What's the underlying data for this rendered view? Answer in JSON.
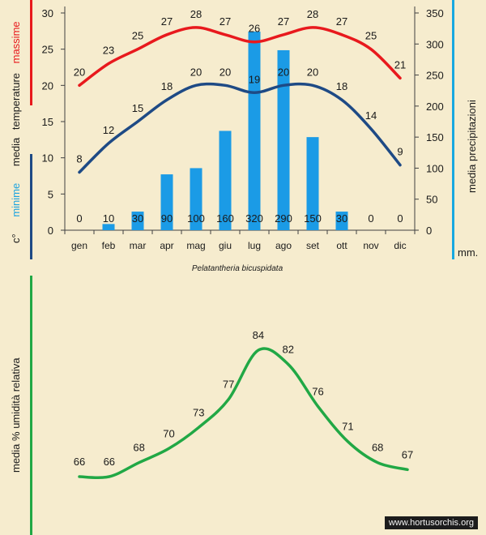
{
  "title": "Pelatantheria bicuspidata",
  "watermark": "www.hortusorchis.org",
  "colors": {
    "max_line": "#e8191d",
    "min_line": "#1e4a85",
    "precip_bar": "#1b9be6",
    "humidity_line": "#21a845",
    "accent_bar": "#18a8e0",
    "background": "#f6ecce"
  },
  "chart_data": [
    {
      "type": "bar+line",
      "categories": [
        "gen",
        "feb",
        "mar",
        "apr",
        "mag",
        "giu",
        "lug",
        "ago",
        "set",
        "ott",
        "nov",
        "dic"
      ],
      "series": [
        {
          "name": "massime",
          "kind": "line",
          "axis": "left",
          "values": [
            20,
            23,
            25,
            27,
            28,
            27,
            26,
            27,
            28,
            27,
            25,
            21
          ]
        },
        {
          "name": "minime",
          "kind": "line",
          "axis": "left",
          "values": [
            8,
            12,
            15,
            18,
            20,
            20,
            19,
            20,
            20,
            18,
            14,
            9
          ]
        },
        {
          "name": "media precipitazioni",
          "kind": "bar",
          "axis": "right",
          "values": [
            0,
            10,
            30,
            90,
            100,
            160,
            320,
            290,
            150,
            30,
            0,
            0
          ]
        }
      ],
      "left_axis": {
        "label_parts": [
          "c°",
          "minime",
          "media",
          "temperature",
          "massime"
        ],
        "min": 0,
        "max": 30,
        "ticks": [
          0,
          5,
          10,
          15,
          20,
          25,
          30
        ]
      },
      "right_axis": {
        "label": "media  precipitazioni",
        "unit": "mm.",
        "min": 0,
        "max": 350,
        "ticks": [
          0,
          50,
          100,
          150,
          200,
          250,
          300,
          350
        ]
      },
      "grid": false,
      "legend": "none"
    },
    {
      "type": "line",
      "categories": [
        "gen",
        "feb",
        "mar",
        "apr",
        "mag",
        "giu",
        "lug",
        "ago",
        "set",
        "ott",
        "nov",
        "dic"
      ],
      "series": [
        {
          "name": "media % umidità relativa",
          "values": [
            66,
            66,
            68,
            70,
            73,
            77,
            84,
            82,
            76,
            71,
            68,
            67
          ]
        }
      ],
      "ylabel": "media %  umidità relativa",
      "ylim": [
        60,
        90
      ],
      "grid": false,
      "legend": "none"
    }
  ]
}
